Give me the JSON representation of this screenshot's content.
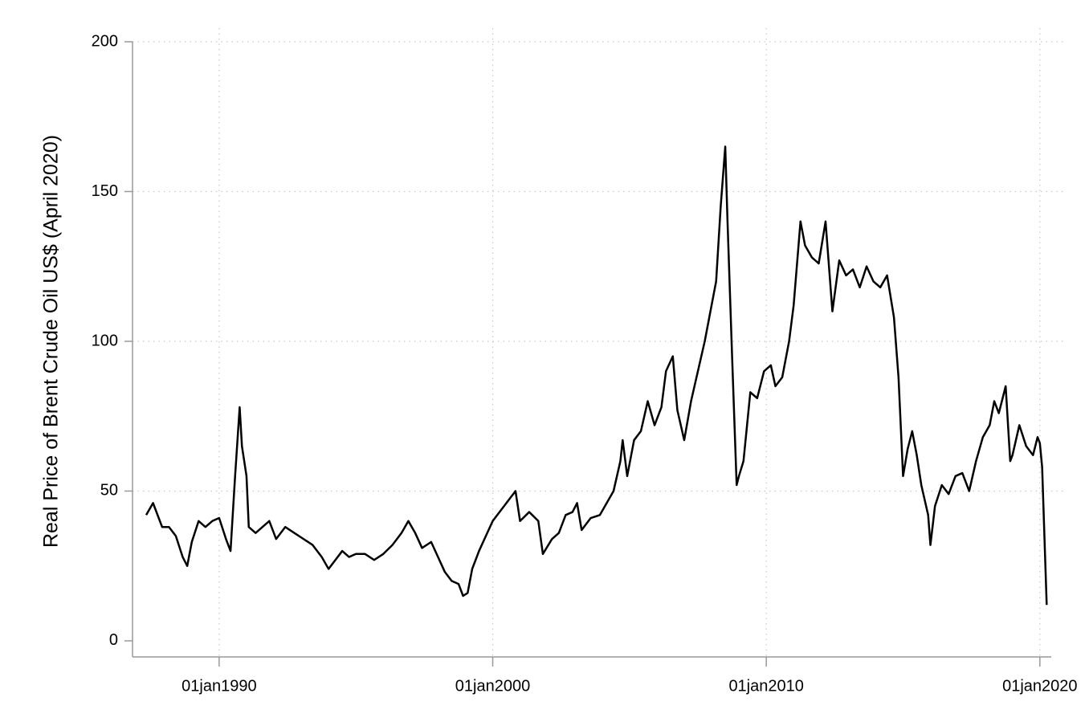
{
  "chart_data": {
    "type": "line",
    "y_label": "Real Price of Brent Crude Oil US$ (April 2020)",
    "x": [
      "1987-05",
      "1987-08",
      "1987-12",
      "1988-03",
      "1988-06",
      "1988-09",
      "1988-11",
      "1989-01",
      "1989-04",
      "1989-07",
      "1989-10",
      "1990-01",
      "1990-04",
      "1990-06",
      "1990-08",
      "1990-10",
      "1990-11",
      "1991-01",
      "1991-02",
      "1991-05",
      "1991-08",
      "1991-11",
      "1992-02",
      "1992-06",
      "1992-10",
      "1993-02",
      "1993-06",
      "1993-10",
      "1994-01",
      "1994-04",
      "1994-07",
      "1994-10",
      "1995-01",
      "1995-05",
      "1995-09",
      "1996-01",
      "1996-05",
      "1996-09",
      "1996-12",
      "1997-03",
      "1997-06",
      "1997-10",
      "1998-01",
      "1998-04",
      "1998-07",
      "1998-10",
      "1998-12",
      "1999-02",
      "1999-04",
      "1999-07",
      "1999-10",
      "2000-01",
      "2000-03",
      "2000-06",
      "2000-09",
      "2000-11",
      "2001-01",
      "2001-05",
      "2001-09",
      "2001-11",
      "2002-03",
      "2002-06",
      "2002-09",
      "2002-12",
      "2003-02",
      "2003-04",
      "2003-08",
      "2003-12",
      "2004-03",
      "2004-06",
      "2004-09",
      "2004-10",
      "2004-12",
      "2005-03",
      "2005-06",
      "2005-09",
      "2005-12",
      "2006-03",
      "2006-05",
      "2006-08",
      "2006-10",
      "2007-01",
      "2007-04",
      "2007-07",
      "2007-10",
      "2007-12",
      "2008-03",
      "2008-05",
      "2008-07",
      "2008-08",
      "2008-10",
      "2008-12",
      "2009-01",
      "2009-03",
      "2009-06",
      "2009-09",
      "2009-12",
      "2010-03",
      "2010-05",
      "2010-08",
      "2010-11",
      "2011-01",
      "2011-04",
      "2011-06",
      "2011-09",
      "2011-12",
      "2012-03",
      "2012-06",
      "2012-09",
      "2012-12",
      "2013-03",
      "2013-06",
      "2013-09",
      "2013-12",
      "2014-03",
      "2014-06",
      "2014-09",
      "2014-11",
      "2015-01",
      "2015-03",
      "2015-05",
      "2015-07",
      "2015-09",
      "2015-12",
      "2016-01",
      "2016-03",
      "2016-06",
      "2016-09",
      "2016-12",
      "2017-03",
      "2017-06",
      "2017-09",
      "2017-12",
      "2018-03",
      "2018-05",
      "2018-07",
      "2018-10",
      "2018-12",
      "2019-01",
      "2019-04",
      "2019-07",
      "2019-10",
      "2019-12",
      "2020-01",
      "2020-02",
      "2020-03",
      "2020-04"
    ],
    "series": [
      {
        "color": "#000000",
        "values": [
          42,
          46,
          38,
          38,
          35,
          28,
          25,
          33,
          40,
          38,
          40,
          41,
          34,
          30,
          55,
          78,
          65,
          55,
          38,
          36,
          38,
          40,
          34,
          38,
          36,
          34,
          32,
          28,
          24,
          27,
          30,
          28,
          29,
          29,
          27,
          29,
          32,
          36,
          40,
          36,
          31,
          33,
          28,
          23,
          20,
          19,
          15,
          16,
          24,
          30,
          35,
          40,
          42,
          45,
          48,
          50,
          40,
          43,
          40,
          29,
          34,
          36,
          42,
          43,
          46,
          37,
          41,
          42,
          46,
          50,
          60,
          67,
          55,
          67,
          70,
          80,
          72,
          78,
          90,
          95,
          77,
          67,
          80,
          90,
          100,
          108,
          120,
          145,
          165,
          140,
          95,
          52,
          55,
          60,
          83,
          81,
          90,
          92,
          85,
          88,
          100,
          112,
          140,
          132,
          128,
          126,
          140,
          110,
          127,
          122,
          124,
          118,
          125,
          120,
          118,
          122,
          108,
          88,
          55,
          64,
          70,
          62,
          52,
          42,
          32,
          45,
          52,
          49,
          55,
          56,
          50,
          60,
          68,
          72,
          80,
          76,
          85,
          60,
          62,
          72,
          65,
          62,
          68,
          66,
          58,
          35,
          12
        ]
      }
    ],
    "xlim": [
      "1986-11",
      "2020-06"
    ],
    "xticks": [
      {
        "value": "1990-01",
        "label": "01jan1990"
      },
      {
        "value": "2000-01",
        "label": "01jan2000"
      },
      {
        "value": "2010-01",
        "label": "01jan2010"
      },
      {
        "value": "2020-01",
        "label": "01jan2020"
      }
    ],
    "ylim": [
      -5,
      200
    ],
    "yticks": [
      0,
      50,
      100,
      150,
      200
    ],
    "grid": true
  }
}
